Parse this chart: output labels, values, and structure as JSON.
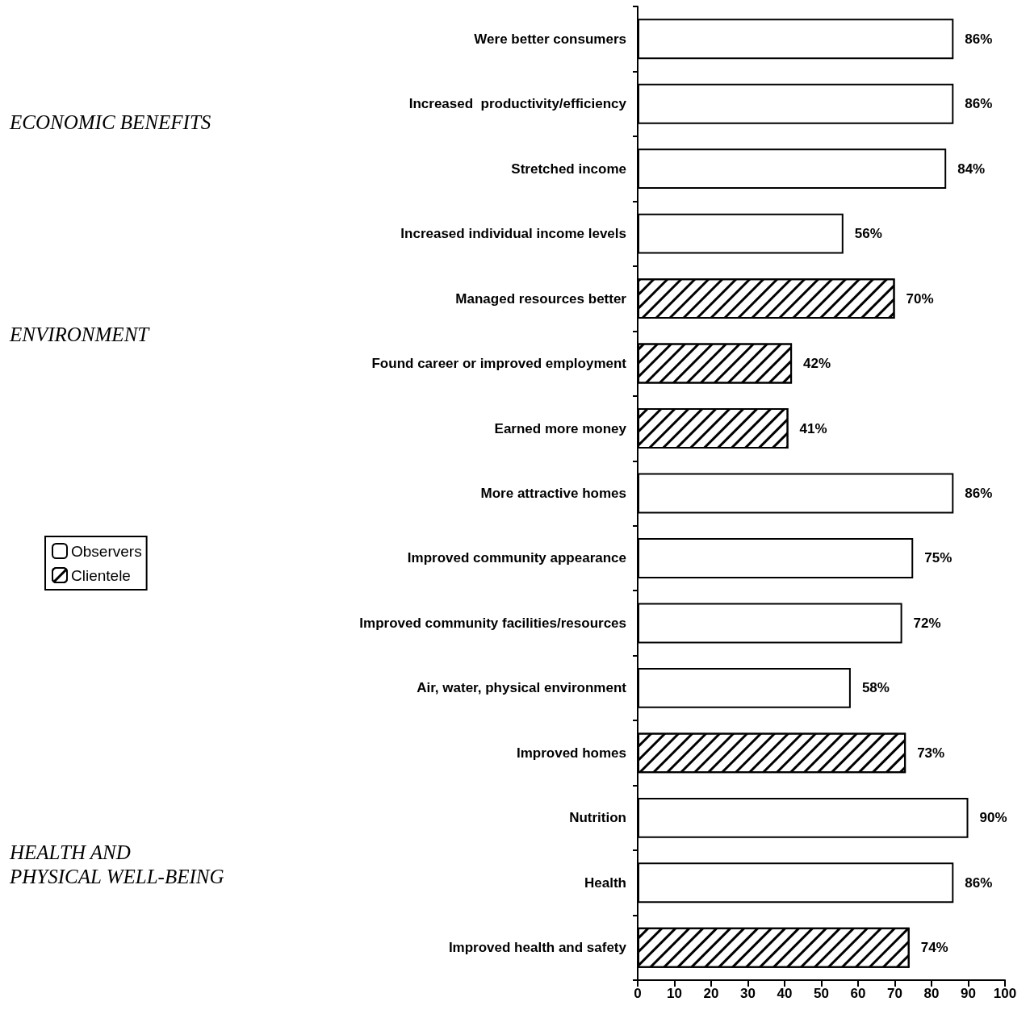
{
  "chart_data": {
    "type": "bar",
    "orientation": "horizontal",
    "stacked": true,
    "categories": [
      "Were better consumers",
      "Increased  productivity/efficiency",
      "Stretched income",
      "Increased individual income levels",
      "Managed resources better",
      "Found career or improved employment",
      "Earned more money",
      "More attractive homes",
      "Improved community appearance",
      "Improved community facilities/resources",
      "Air, water, physical environment",
      "Improved homes",
      "Nutrition",
      "Health",
      "Improved health and safety"
    ],
    "series": [
      {
        "name": "Observers",
        "color": "#000000",
        "values": [
          86,
          86,
          84,
          56,
          null,
          null,
          null,
          86,
          75,
          72,
          58,
          null,
          90,
          86,
          null
        ],
        "value_labels": [
          "86%",
          "86%",
          "84%",
          "56%",
          null,
          null,
          null,
          "86%",
          "75%",
          "72%",
          "58%",
          null,
          "90%",
          "86%",
          null
        ]
      },
      {
        "name": "Clientele",
        "color": "#000000",
        "values": [
          null,
          null,
          null,
          null,
          70,
          42,
          41,
          null,
          null,
          null,
          null,
          73,
          null,
          null,
          74
        ],
        "value_labels": [
          null,
          null,
          null,
          null,
          "70%",
          "42%",
          "41%",
          null,
          null,
          null,
          null,
          "73%",
          null,
          null,
          "74%"
        ]
      }
    ],
    "xlim": [
      0,
      100
    ],
    "xticks": [
      0,
      10,
      20,
      30,
      40,
      50,
      60,
      70,
      80,
      90,
      100
    ],
    "grid": false,
    "legend": "left",
    "annotations": [
      "ECONOMIC BENEFITS",
      "ENVIRONMENT",
      "HEALTH AND\nPHYSICAL WELL-BEING"
    ]
  }
}
